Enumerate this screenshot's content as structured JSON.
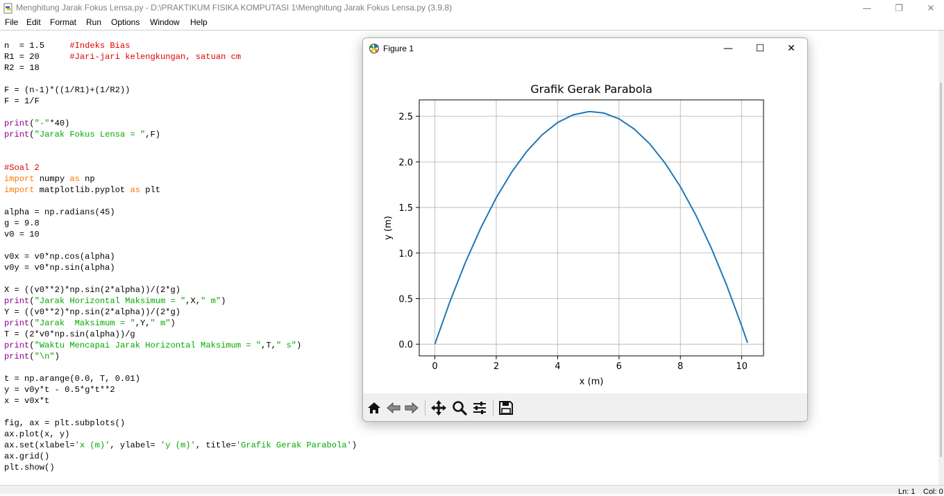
{
  "window": {
    "title": "Menghitung Jarak Fokus Lensa.py - D:\\PRAKTIKUM FISIKA KOMPUTASI 1\\Menghitung Jarak Fokus Lensa.py (3.9.8)",
    "minimize": "—",
    "restore": "❐",
    "close": "✕"
  },
  "menu": [
    "File",
    "Edit",
    "Format",
    "Run",
    "Options",
    "Window",
    "Help"
  ],
  "code_lines": [
    [
      [
        "n  = 1.5     ",
        ""
      ],
      [
        "#Indeks Bias",
        "cm"
      ]
    ],
    [
      [
        "R1 = 20      ",
        ""
      ],
      [
        "#Jari-jari kelengkungan, satuan cm",
        "cm"
      ]
    ],
    [
      [
        "R2 = 18",
        ""
      ]
    ],
    [
      [
        "",
        ""
      ]
    ],
    [
      [
        "F = (n-1)*((1/R1)+(1/R2))",
        ""
      ]
    ],
    [
      [
        "F = 1/F",
        ""
      ]
    ],
    [
      [
        "",
        ""
      ]
    ],
    [
      [
        "print",
        "bi"
      ],
      [
        "(",
        ""
      ],
      [
        "\"-\"",
        "str"
      ],
      [
        "*40)",
        ""
      ]
    ],
    [
      [
        "print",
        "bi"
      ],
      [
        "(",
        ""
      ],
      [
        "\"Jarak Fokus Lensa = \"",
        "str"
      ],
      [
        ",F)",
        ""
      ]
    ],
    [
      [
        "",
        ""
      ]
    ],
    [
      [
        "",
        ""
      ]
    ],
    [
      [
        "#Soal 2",
        "cm"
      ]
    ],
    [
      [
        "import",
        "kw"
      ],
      [
        " numpy ",
        ""
      ],
      [
        "as",
        "kw"
      ],
      [
        " np",
        ""
      ]
    ],
    [
      [
        "import",
        "kw"
      ],
      [
        " matplotlib.pyplot ",
        ""
      ],
      [
        "as",
        "kw"
      ],
      [
        " plt",
        ""
      ]
    ],
    [
      [
        "",
        ""
      ]
    ],
    [
      [
        "alpha = np.radians(45)",
        ""
      ]
    ],
    [
      [
        "g = 9.8",
        ""
      ]
    ],
    [
      [
        "v0 = 10",
        ""
      ]
    ],
    [
      [
        "",
        ""
      ]
    ],
    [
      [
        "v0x = v0*np.cos(alpha)",
        ""
      ]
    ],
    [
      [
        "v0y = v0*np.sin(alpha)",
        ""
      ]
    ],
    [
      [
        "",
        ""
      ]
    ],
    [
      [
        "X = ((v0**2)*np.sin(2*alpha))/(2*g)",
        ""
      ]
    ],
    [
      [
        "print",
        "bi"
      ],
      [
        "(",
        ""
      ],
      [
        "\"Jarak Horizontal Maksimum = \"",
        "str"
      ],
      [
        ",X,",
        ""
      ],
      [
        "\" m\"",
        "str"
      ],
      [
        ")",
        ""
      ]
    ],
    [
      [
        "Y = ((v0**2)*np.sin(2*alpha))/(2*g)",
        ""
      ]
    ],
    [
      [
        "print",
        "bi"
      ],
      [
        "(",
        ""
      ],
      [
        "\"Jarak  Maksimum = \"",
        "str"
      ],
      [
        ",Y,",
        ""
      ],
      [
        "\" m\"",
        "str"
      ],
      [
        ")",
        ""
      ]
    ],
    [
      [
        "T = (2*v0*np.sin(alpha))/g",
        ""
      ]
    ],
    [
      [
        "print",
        "bi"
      ],
      [
        "(",
        ""
      ],
      [
        "\"Waktu Mencapai Jarak Horizontal Maksimum = \"",
        "str"
      ],
      [
        ",T,",
        ""
      ],
      [
        "\" s\"",
        "str"
      ],
      [
        ")",
        ""
      ]
    ],
    [
      [
        "print",
        "bi"
      ],
      [
        "(",
        ""
      ],
      [
        "\"\\n\"",
        "str"
      ],
      [
        ")",
        ""
      ]
    ],
    [
      [
        "",
        ""
      ]
    ],
    [
      [
        "t = np.arange(0.0, T, 0.01)",
        ""
      ]
    ],
    [
      [
        "y = v0y*t - 0.5*g*t**2",
        ""
      ]
    ],
    [
      [
        "x = v0x*t",
        ""
      ]
    ],
    [
      [
        "",
        ""
      ]
    ],
    [
      [
        "fig, ax = plt.subplots()",
        ""
      ]
    ],
    [
      [
        "ax.plot(x, y)",
        ""
      ]
    ],
    [
      [
        "ax.set(xlabel=",
        ""
      ],
      [
        "'x (m)'",
        "str"
      ],
      [
        ", ylabel= ",
        ""
      ],
      [
        "'y (m)'",
        "str"
      ],
      [
        ", title=",
        ""
      ],
      [
        "'Grafik Gerak Parabola'",
        "str"
      ],
      [
        ")",
        ""
      ]
    ],
    [
      [
        "ax.grid()",
        ""
      ]
    ],
    [
      [
        "plt.show()",
        ""
      ]
    ]
  ],
  "status": {
    "line": "Ln: 1",
    "col": "Col: 0"
  },
  "figure": {
    "title": "Figure 1",
    "minimize": "—",
    "maximize": "☐",
    "close": "✕",
    "toolbar": [
      "home-icon",
      "back-arrow-icon",
      "forward-arrow-icon",
      "pan-icon",
      "zoom-icon",
      "configure-subplots-icon",
      "save-icon"
    ]
  },
  "chart_data": {
    "type": "line",
    "title": "Grafik Gerak Parabola",
    "xlabel": "x (m)",
    "ylabel": "y (m)",
    "xlim": [
      -0.51,
      10.71
    ],
    "ylim": [
      -0.128,
      2.68
    ],
    "xticks": [
      0,
      2,
      4,
      6,
      8,
      10
    ],
    "xtick_labels": [
      "0",
      "2",
      "4",
      "6",
      "8",
      "10"
    ],
    "yticks": [
      0.0,
      0.5,
      1.0,
      1.5,
      2.0,
      2.5
    ],
    "ytick_labels": [
      "0.0",
      "0.5",
      "1.0",
      "1.5",
      "2.0",
      "2.5"
    ],
    "grid": true,
    "series": [
      {
        "color": "#1f77b4",
        "x": [
          0,
          0.5,
          1,
          1.5,
          2,
          2.5,
          3,
          3.5,
          4,
          4.5,
          5,
          5.1,
          5.5,
          6,
          6.5,
          7,
          7.5,
          8,
          8.5,
          9,
          9.5,
          10,
          10.19
        ],
        "y": [
          0,
          0.476,
          0.902,
          1.279,
          1.608,
          1.887,
          2.118,
          2.299,
          2.432,
          2.516,
          2.551,
          2.551,
          2.536,
          2.472,
          2.359,
          2.198,
          1.987,
          1.728,
          1.419,
          1.061,
          0.655,
          0.2,
          0.015
        ]
      }
    ]
  }
}
